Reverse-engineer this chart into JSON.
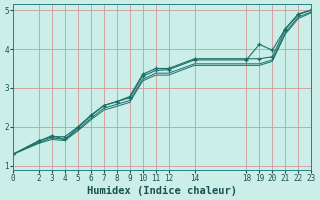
{
  "title": "",
  "xlabel": "Humidex (Indice chaleur)",
  "background_color": "#cceee8",
  "grid_color": "#d09898",
  "line_color": "#1a7068",
  "lines": [
    {
      "x": [
        0,
        2,
        3,
        4,
        5,
        6,
        7,
        8,
        9,
        10,
        11,
        12,
        14,
        18,
        19,
        20,
        21,
        22,
        23
      ],
      "y": [
        1.3,
        1.65,
        1.75,
        1.75,
        2.0,
        2.3,
        2.55,
        2.65,
        2.78,
        3.35,
        3.5,
        3.5,
        3.75,
        3.75,
        3.75,
        3.8,
        4.5,
        4.88,
        5.0
      ],
      "marker": true
    },
    {
      "x": [
        0,
        2,
        3,
        4,
        5,
        6,
        7,
        8,
        9,
        10,
        11,
        12,
        14,
        18,
        19,
        20,
        21,
        22,
        23
      ],
      "y": [
        1.3,
        1.63,
        1.78,
        1.68,
        1.98,
        2.28,
        2.55,
        2.65,
        2.75,
        3.3,
        3.45,
        3.47,
        3.72,
        3.72,
        4.12,
        3.97,
        4.52,
        4.9,
        5.0
      ],
      "marker": true
    },
    {
      "x": [
        0,
        2,
        3,
        4,
        5,
        6,
        7,
        8,
        9,
        10,
        11,
        12,
        14,
        18,
        19,
        20,
        21,
        22,
        23
      ],
      "y": [
        1.3,
        1.6,
        1.72,
        1.68,
        1.93,
        2.22,
        2.48,
        2.58,
        2.68,
        3.22,
        3.38,
        3.38,
        3.62,
        3.62,
        3.62,
        3.72,
        4.42,
        4.82,
        4.95
      ],
      "marker": false
    },
    {
      "x": [
        0,
        2,
        3,
        4,
        5,
        6,
        7,
        8,
        9,
        10,
        11,
        12,
        14,
        18,
        19,
        20,
        21,
        22,
        23
      ],
      "y": [
        1.3,
        1.58,
        1.68,
        1.65,
        1.9,
        2.18,
        2.43,
        2.53,
        2.63,
        3.18,
        3.33,
        3.33,
        3.58,
        3.58,
        3.58,
        3.68,
        4.38,
        4.78,
        4.93
      ],
      "marker": false
    }
  ],
  "xlim": [
    0,
    23
  ],
  "ylim": [
    0.9,
    5.15
  ],
  "xticks": [
    0,
    2,
    3,
    4,
    5,
    6,
    7,
    8,
    9,
    10,
    11,
    12,
    14,
    18,
    19,
    20,
    21,
    22,
    23
  ],
  "yticks": [
    1,
    2,
    3,
    4,
    5
  ],
  "tick_fontsize": 5.5,
  "xlabel_fontsize": 7.5
}
